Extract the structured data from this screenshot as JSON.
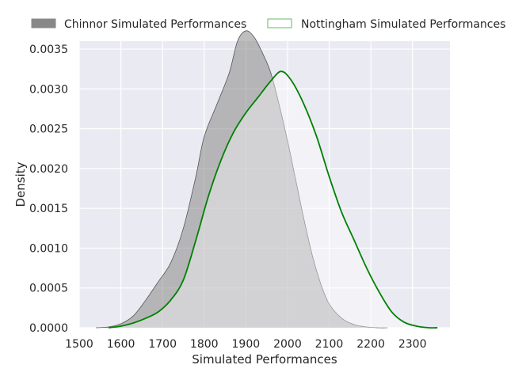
{
  "chart_data": {
    "type": "area",
    "title": "",
    "xlabel": "Simulated Performances",
    "ylabel": "Density",
    "xlim": [
      1500,
      2390
    ],
    "ylim": [
      0,
      0.0036
    ],
    "xticks": [
      1500,
      1600,
      1700,
      1800,
      1900,
      2000,
      2100,
      2200,
      2300
    ],
    "xtick_labels": [
      "1500",
      "1600",
      "1700",
      "1800",
      "1900",
      "2000",
      "2100",
      "2200",
      "2300"
    ],
    "yticks": [
      0,
      0.0005,
      0.001,
      0.0015,
      0.002,
      0.0025,
      0.003,
      0.0035
    ],
    "ytick_labels": [
      "0.0000",
      "0.0005",
      "0.0010",
      "0.0015",
      "0.0020",
      "0.0025",
      "0.0030",
      "0.0035"
    ],
    "grid": true,
    "legend_position": "top",
    "series": [
      {
        "name": "Chinnor Simulated Performances",
        "style": "filled",
        "color": "#888888",
        "x": [
          1540,
          1570,
          1600,
          1630,
          1660,
          1690,
          1720,
          1750,
          1780,
          1800,
          1830,
          1860,
          1880,
          1900,
          1920,
          1940,
          1960,
          1980,
          2000,
          2020,
          2040,
          2060,
          2080,
          2100,
          2130,
          2160,
          2190,
          2220,
          2240
        ],
        "y": [
          0.0,
          1e-05,
          5e-05,
          0.00015,
          0.00035,
          0.00058,
          0.00082,
          0.00125,
          0.0019,
          0.0024,
          0.0028,
          0.0032,
          0.0036,
          0.00373,
          0.00365,
          0.00345,
          0.0032,
          0.0028,
          0.00235,
          0.00185,
          0.00135,
          0.0009,
          0.00055,
          0.0003,
          0.00012,
          4e-05,
          1e-05,
          0.0,
          0.0
        ]
      },
      {
        "name": "Nottingham Simulated Performances",
        "style": "line",
        "color": "#008000",
        "x": [
          1570,
          1600,
          1630,
          1660,
          1690,
          1720,
          1750,
          1780,
          1810,
          1840,
          1870,
          1900,
          1930,
          1960,
          1985,
          2010,
          2040,
          2070,
          2100,
          2130,
          2160,
          2190,
          2220,
          2250,
          2280,
          2310,
          2340,
          2360
        ],
        "y": [
          0.0,
          2e-05,
          6e-05,
          0.00012,
          0.0002,
          0.00035,
          0.0006,
          0.0011,
          0.00165,
          0.0021,
          0.00245,
          0.0027,
          0.0029,
          0.0031,
          0.00322,
          0.0031,
          0.0028,
          0.0024,
          0.0019,
          0.00145,
          0.0011,
          0.00075,
          0.00045,
          0.0002,
          7e-05,
          2e-05,
          0.0,
          0.0
        ]
      }
    ]
  }
}
